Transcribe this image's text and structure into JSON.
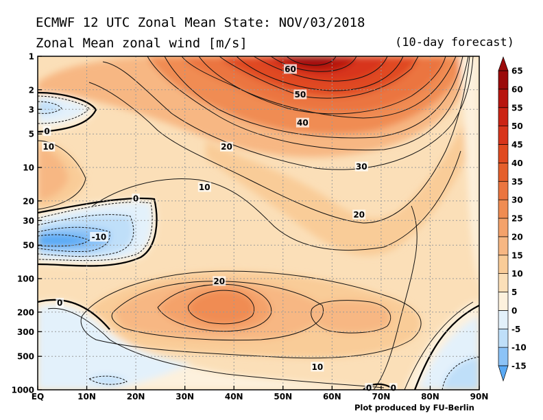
{
  "header": {
    "title_line1": "ECMWF 12 UTC Zonal Mean State: NOV/03/2018",
    "title_line2": "Zonal Mean zonal wind [m/s]",
    "forecast_note": "(10-day forecast)",
    "credit": "Plot produced by FU-Berlin"
  },
  "chart_data": {
    "type": "heatmap",
    "title": "Zonal Mean zonal wind [m/s]",
    "units": "m/s",
    "x_axis": {
      "range": [
        0,
        90
      ],
      "tick_values": [
        0,
        10,
        20,
        30,
        40,
        50,
        60,
        70,
        80,
        90
      ],
      "tick_labels": [
        "EQ",
        "10N",
        "20N",
        "30N",
        "40N",
        "50N",
        "60N",
        "70N",
        "80N",
        "90N"
      ]
    },
    "y_axis": {
      "scale": "log",
      "inverted": true,
      "range": [
        1000,
        1
      ],
      "tick_values": [
        1,
        2,
        3,
        5,
        10,
        20,
        30,
        50,
        100,
        200,
        300,
        500,
        1000
      ],
      "tick_labels": [
        "1",
        "2",
        "3",
        "5",
        "10",
        "20",
        "30",
        "50",
        "100",
        "200",
        "300",
        "500",
        "1000"
      ]
    },
    "grid": true,
    "colorbar": {
      "placement": "right",
      "levels": [
        -15,
        -10,
        -5,
        0,
        5,
        10,
        15,
        20,
        25,
        30,
        35,
        40,
        45,
        50,
        55,
        60,
        65
      ],
      "labels": [
        "-15",
        "-10",
        "-5",
        "0",
        "5",
        "10",
        "15",
        "20",
        "25",
        "30",
        "35",
        "40",
        "45",
        "50",
        "55",
        "60",
        "65"
      ],
      "colors": [
        "#5aaaf5",
        "#8cc3f7",
        "#bfdff9",
        "#e3f1fb",
        "#fdf1dd",
        "#fbdfb8",
        "#f9cc98",
        "#f7b783",
        "#f4a26b",
        "#f08c52",
        "#eb753f",
        "#e55f2b",
        "#e04a20",
        "#d8351b",
        "#cc2414",
        "#b8150f",
        "#9b0a0a"
      ]
    },
    "contour_labels": [
      {
        "text": "60",
        "lat": 51.5,
        "p": 1.3
      },
      {
        "text": "50",
        "lat": 53.5,
        "p": 2.2
      },
      {
        "text": "40",
        "lat": 54,
        "p": 3.95
      },
      {
        "text": "30",
        "lat": 66,
        "p": 9.8
      },
      {
        "text": "20",
        "lat": 38.5,
        "p": 6.5
      },
      {
        "text": "20",
        "lat": 65.5,
        "p": 26.5
      },
      {
        "text": "20",
        "lat": 37,
        "p": 105
      },
      {
        "text": "10",
        "lat": 2.2,
        "p": 6.5
      },
      {
        "text": "10",
        "lat": 34,
        "p": 15
      },
      {
        "text": "10",
        "lat": 57,
        "p": 620
      },
      {
        "text": "0",
        "lat": 1.9,
        "p": 4.7
      },
      {
        "text": "0",
        "lat": 20,
        "p": 19
      },
      {
        "text": "0",
        "lat": 4.5,
        "p": 165
      },
      {
        "text": "0",
        "lat": 67.5,
        "p": 960
      },
      {
        "text": "0",
        "lat": 72.5,
        "p": 960
      },
      {
        "text": "-10",
        "lat": 12.5,
        "p": 42
      }
    ]
  }
}
